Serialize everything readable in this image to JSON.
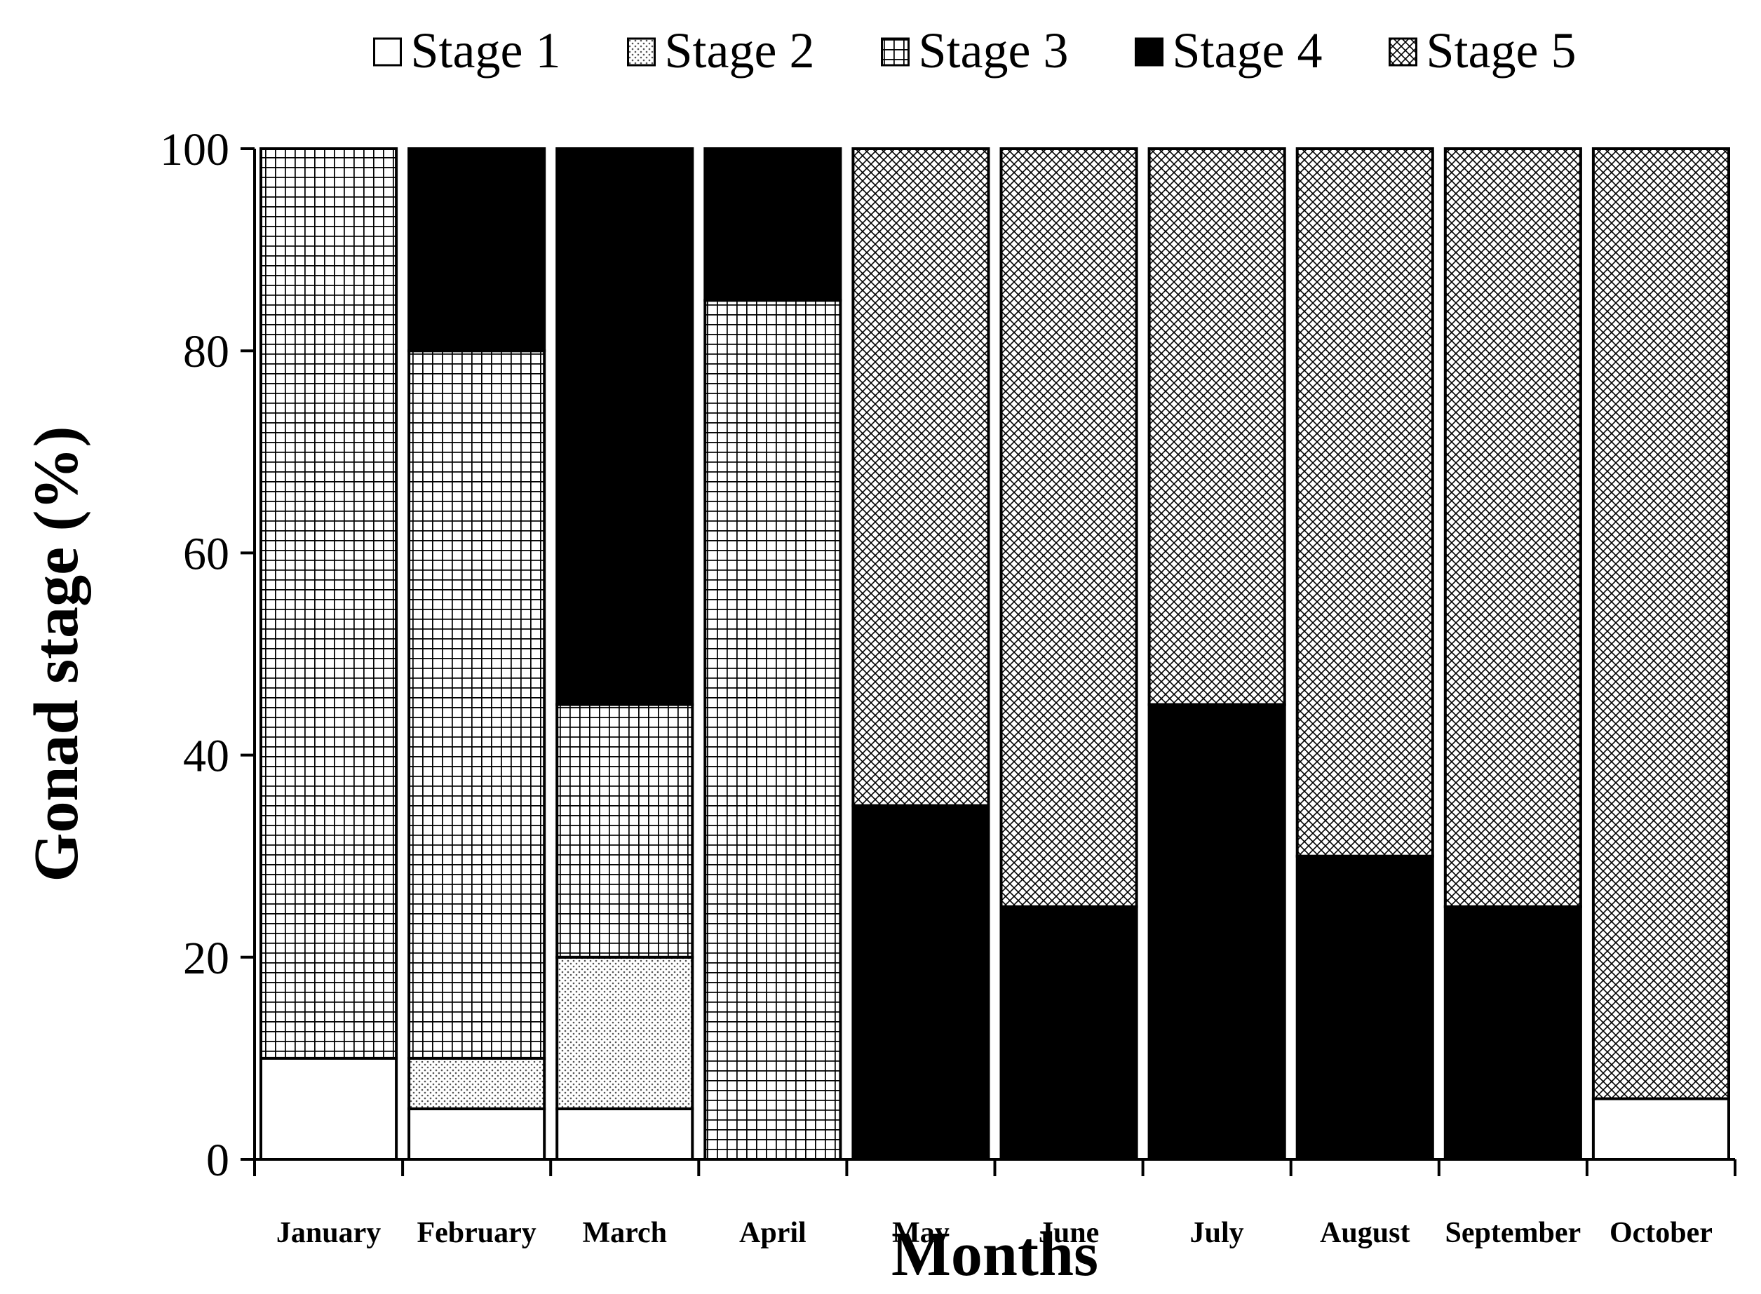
{
  "chart_data": {
    "type": "bar",
    "stacked": true,
    "categories": [
      "January",
      "February",
      "March",
      "April",
      "May",
      "June",
      "July",
      "August",
      "September",
      "October"
    ],
    "series": [
      {
        "name": "Stage 1",
        "values": [
          10,
          5,
          5,
          0,
          0,
          0,
          0,
          0,
          0,
          6
        ]
      },
      {
        "name": "Stage 2",
        "values": [
          0,
          5,
          15,
          0,
          0,
          0,
          0,
          0,
          0,
          0
        ]
      },
      {
        "name": "Stage 3",
        "values": [
          90,
          70,
          25,
          85,
          0,
          0,
          0,
          0,
          0,
          0
        ]
      },
      {
        "name": "Stage 4",
        "values": [
          0,
          20,
          55,
          15,
          35,
          25,
          45,
          30,
          25,
          0
        ]
      },
      {
        "name": "Stage 5",
        "values": [
          0,
          0,
          0,
          0,
          65,
          75,
          55,
          70,
          75,
          94
        ]
      }
    ],
    "yticks": [
      "0",
      "20",
      "40",
      "60",
      "80",
      "100"
    ],
    "ylim": [
      0,
      100
    ],
    "xlabel": "Months",
    "ylabel": "Gonad stage (%)",
    "grid": false,
    "legend_position": "top"
  }
}
